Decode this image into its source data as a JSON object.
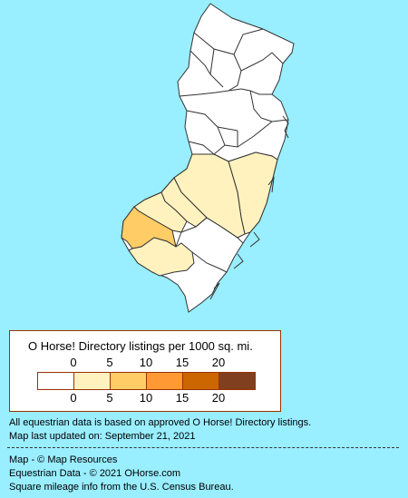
{
  "map": {
    "state": "New Jersey",
    "colors": {
      "background": "#99EEFF",
      "county_default": "#FFFFFF",
      "county_border": "#333333",
      "legend_border": "#993300"
    },
    "highlighted_counties": [
      {
        "name": "Ocean",
        "range": "0-5",
        "color": "#FFF2BF"
      },
      {
        "name": "Burlington",
        "range": "0-5",
        "color": "#FFF2BF"
      },
      {
        "name": "Camden",
        "range": "0-5",
        "color": "#FFF2BF"
      },
      {
        "name": "Gloucester",
        "range": "0-5",
        "color": "#FFF2BF"
      },
      {
        "name": "Cumberland",
        "range": "0-5",
        "color": "#FFF2BF"
      },
      {
        "name": "Salem",
        "range": "5-10",
        "color": "#FFCC66"
      }
    ]
  },
  "legend": {
    "title": "O Horse! Directory listings per 1000 sq. mi.",
    "ticks": [
      "0",
      "5",
      "10",
      "15",
      "20"
    ],
    "colors": [
      "#FFFFFF",
      "#FFF2BF",
      "#FFCC66",
      "#FF9933",
      "#CC6600",
      "#804020"
    ]
  },
  "notes": {
    "line1": "All equestrian data is based on approved O Horse! Directory listings.",
    "line2": "Map last updated on: September 21, 2021"
  },
  "credits": {
    "line1": "Map - © Map Resources",
    "line2": "Equestrian Data - © 2021 OHorse.com",
    "line3": "Square mileage info from the U.S. Census Bureau."
  }
}
